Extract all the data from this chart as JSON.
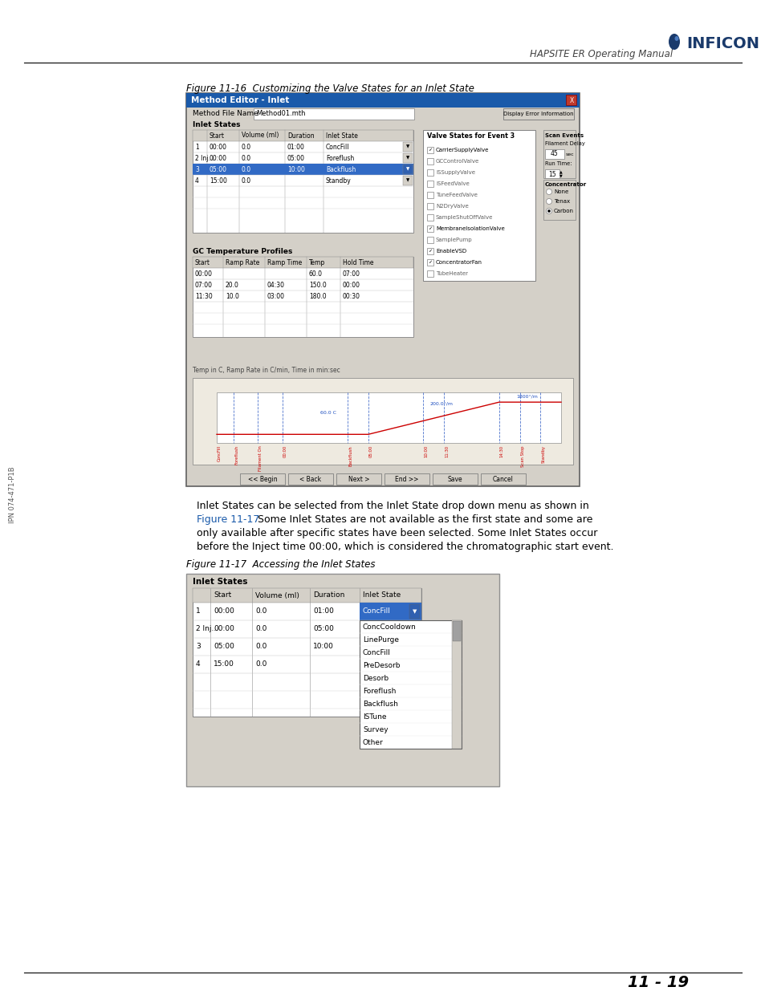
{
  "page_bg": "#ffffff",
  "header_text": "HAPSITE ER Operating Manual",
  "footer_text": "11 - 19",
  "left_margin_text": "IPN 074-471-P1B",
  "fig1_caption": "Figure 11-16  Customizing the Valve States for an Inlet State",
  "fig2_caption": "Figure 11-17  Accessing the Inlet States",
  "body_line1": "Inlet States can be selected from the Inlet State drop down menu as shown in",
  "body_line2_blue": "Figure 11-17.",
  "body_line2_rest": " Some Inlet States are not available as the first state and some are",
  "body_line3": "only available after specific states have been selected. Some Inlet States occur",
  "body_line4": "before the Inject time 00:00, which is considered the chromatographic start event.",
  "title_bar_color": "#1a5aaa",
  "title_bar_text": "Method Editor - Inlet",
  "dialog_bg": "#d4d0c8",
  "inficon_blue": "#1a3a6b",
  "link_blue": "#1a5aaa",
  "inlet_rows": [
    [
      "1",
      "00:00",
      "0.0",
      "01:00",
      "ConcFill",
      false
    ],
    [
      "2 Inj...",
      "00:00",
      "0.0",
      "05:00",
      "Foreflush",
      false
    ],
    [
      "3",
      "05:00",
      "0.0",
      "10:00",
      "Backflush",
      true
    ],
    [
      "4",
      "15:00",
      "0.0",
      "",
      "Standby",
      false
    ]
  ],
  "gc_rows": [
    [
      "00:00",
      "",
      "",
      "60.0",
      "07:00"
    ],
    [
      "07:00",
      "20.0",
      "04:30",
      "150.0",
      "00:00"
    ],
    [
      "11:30",
      "10.0",
      "03:00",
      "180.0",
      "00:30"
    ]
  ],
  "valve_items": [
    [
      "CarrierSupplyValve",
      true
    ],
    [
      "GCControlValve",
      false
    ],
    [
      "ISSupplyValve",
      false
    ],
    [
      "ISFeedValve",
      false
    ],
    [
      "TuneFeedValve",
      false
    ],
    [
      "N2DryValve",
      false
    ],
    [
      "SampleShutOffValve",
      false
    ],
    [
      "MembranelsolationValve",
      true
    ],
    [
      "SamplePump",
      false
    ],
    [
      "EnableVSD",
      true
    ],
    [
      "ConcentratorFan",
      true
    ],
    [
      "TubeHeater",
      false
    ]
  ],
  "dd_items": [
    "ConcCooldown",
    "LinePurge",
    "ConcFill",
    "PreDesorb",
    "Desorb",
    "Foreflush",
    "Backflush",
    "ISTune",
    "Survey",
    "Other"
  ],
  "fig2_rows": [
    [
      "1",
      "00:00",
      "0.0",
      "01:00"
    ],
    [
      "2 Inj...",
      "00:00",
      "0.0",
      "05:00"
    ],
    [
      "3",
      "05:00",
      "0.0",
      "10:00"
    ],
    [
      "4",
      "15:00",
      "0.0",
      ""
    ]
  ]
}
